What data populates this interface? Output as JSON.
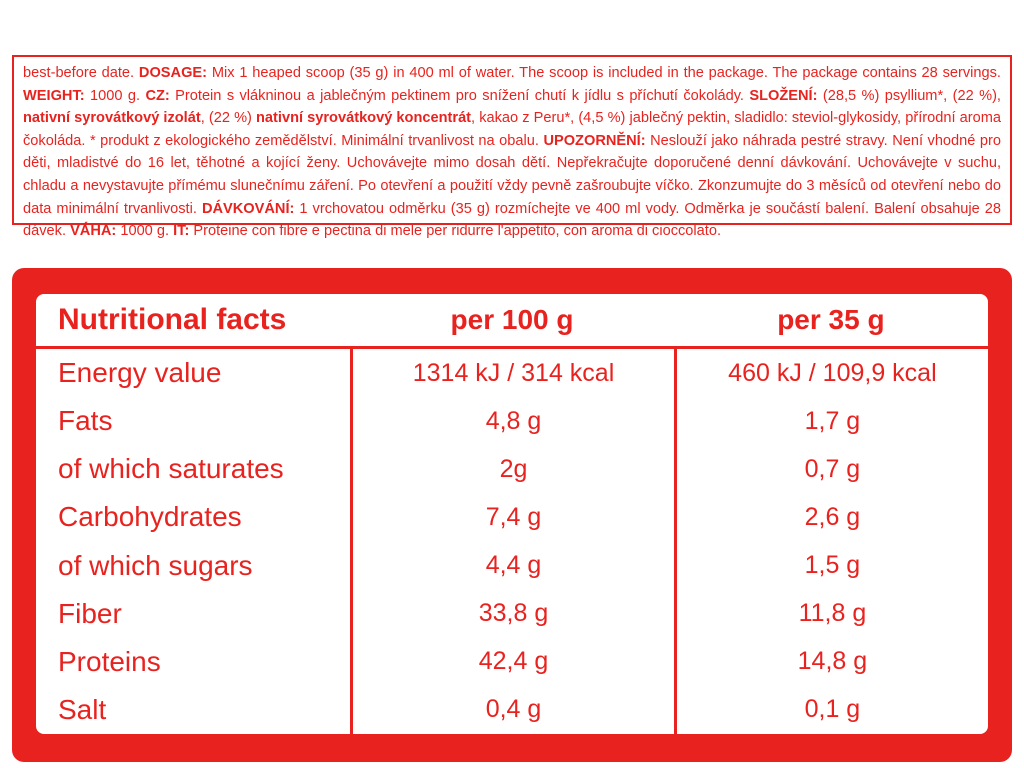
{
  "colors": {
    "red": "#e8231f"
  },
  "info_panel": {
    "segments": [
      {
        "t": "best-before date. ",
        "b": false
      },
      {
        "t": "DOSAGE:",
        "b": true
      },
      {
        "t": " Mix 1 heaped scoop (35 g) in 400 ml of water. The scoop is included in the package. The package contains 28 servings. ",
        "b": false
      },
      {
        "t": "WEIGHT:",
        "b": true
      },
      {
        "t": " 1000 g. ",
        "b": false
      },
      {
        "t": "CZ:",
        "b": true
      },
      {
        "t": " Protein s vlákninou a jablečným pektinem pro snížení chutí k jídlu s příchutí čokolády. ",
        "b": false
      },
      {
        "t": "SLOŽENÍ:",
        "b": true
      },
      {
        "t": " (28,5 %) psyllium*, (22 %), ",
        "b": false
      },
      {
        "t": "nativní syrovátkový izolát",
        "b": true
      },
      {
        "t": ", (22 %) ",
        "b": false
      },
      {
        "t": "nativní syrovátkový koncentrát",
        "b": true
      },
      {
        "t": ", kakao z Peru*, (4,5 %) jablečný pektin, sladidlo: steviol-glykosidy, přírodní aroma čokoláda. * produkt z ekologického zemědělství. Minimální trvanlivost na obalu. ",
        "b": false
      },
      {
        "t": "UPOZORNĚNÍ:",
        "b": true
      },
      {
        "t": " Neslouží jako náhrada pestré stravy. Není vhodné pro děti, mladistvé do 16 let, těhotné a kojící ženy. Uchovávejte mimo dosah dětí. Nepřekračujte doporučené denní dávkování. Uchovávejte v suchu, chladu a nevystavujte přímému slunečnímu záření. Po otevření a použití vždy pevně zašroubujte víčko. Zkonzumujte do 3 měsíců od otevření nebo do data minimální trvanlivosti. ",
        "b": false
      },
      {
        "t": "DÁVKOVÁNÍ:",
        "b": true
      },
      {
        "t": " 1 vrchovatou odměrku (35 g) rozmíchejte ve 400 ml vody. Odměrka je součástí balení. Balení obsahuje 28 dávek. ",
        "b": false
      },
      {
        "t": "VÁHA:",
        "b": true
      },
      {
        "t": " 1000 g. ",
        "b": false
      },
      {
        "t": "IT:",
        "b": true
      },
      {
        "t": " Proteine con fibre e pectina di mele per ridurre l'appetito, con aroma di cioccolato.",
        "b": false
      }
    ]
  },
  "table": {
    "headers": {
      "col1": "Nutritional facts",
      "col2": "per 100 g",
      "col3": "per 35 g"
    },
    "rows": [
      {
        "label": "Energy value",
        "per100": "1314 kJ / 314 kcal",
        "per35": "460 kJ / 109,9 kcal"
      },
      {
        "label": "Fats",
        "per100": "4,8 g",
        "per35": "1,7 g"
      },
      {
        "label": "of which saturates",
        "per100": "2g",
        "per35": "0,7 g"
      },
      {
        "label": "Carbohydrates",
        "per100": "7,4 g",
        "per35": "2,6 g"
      },
      {
        "label": "of which sugars",
        "per100": "4,4 g",
        "per35": "1,5 g"
      },
      {
        "label": "Fiber",
        "per100": "33,8 g",
        "per35": "11,8 g"
      },
      {
        "label": "Proteins",
        "per100": "42,4 g",
        "per35": "14,8 g"
      },
      {
        "label": "Salt",
        "per100": "0,4 g",
        "per35": "0,1 g"
      }
    ]
  }
}
